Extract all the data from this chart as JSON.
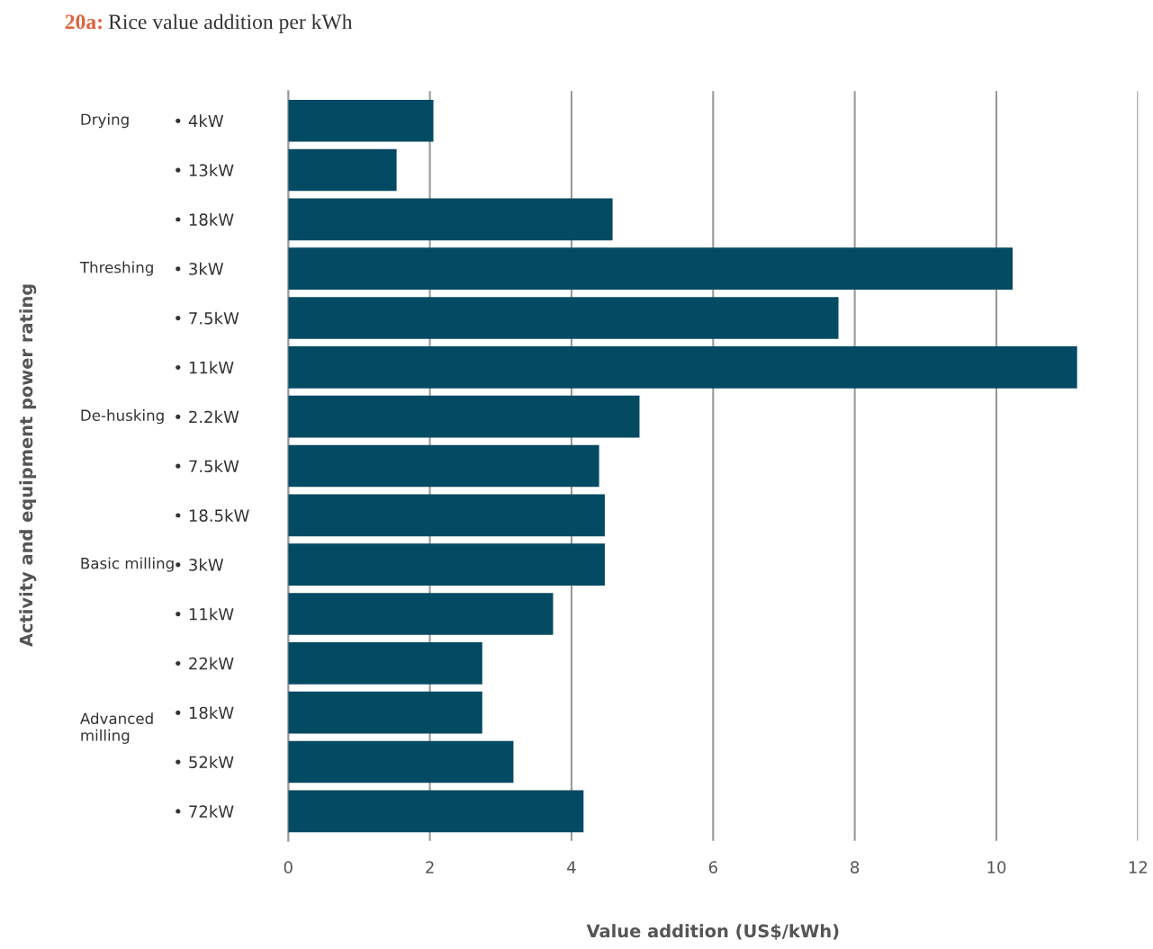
{
  "chart_data": {
    "type": "bar",
    "orientation": "horizontal",
    "title": "20a: Rice value addition per kWh",
    "xlabel": "Value addition (US$/kWh)",
    "categories": [
      "• 4kW",
      "• 13kW",
      "• 18kW",
      "• 3kW",
      "• 7.5kW",
      "• 11kW",
      "• 2.2kW",
      "• 7.5kW",
      "• 18.5kW",
      "• 3kW",
      "• 11kW",
      "• 22kW",
      "• 18kW",
      "• 52kW",
      "• 72kW"
    ],
    "values": [
      2.05,
      1.53,
      4.58,
      10.23,
      7.77,
      11.14,
      4.96,
      4.39,
      4.47,
      4.47,
      3.74,
      2.74,
      2.74,
      3.18,
      4.17
    ],
    "color": "#034a63",
    "annotations": [
      "Drying",
      "Threshing",
      "De-husking",
      "Basic milling",
      "Advanced\nmilling",
      "Activity and equipment power rating"
    ],
    "xlim": [
      0,
      12
    ],
    "xticks": [
      0,
      2,
      4,
      6,
      8,
      10,
      12
    ],
    "grid": "x"
  }
}
